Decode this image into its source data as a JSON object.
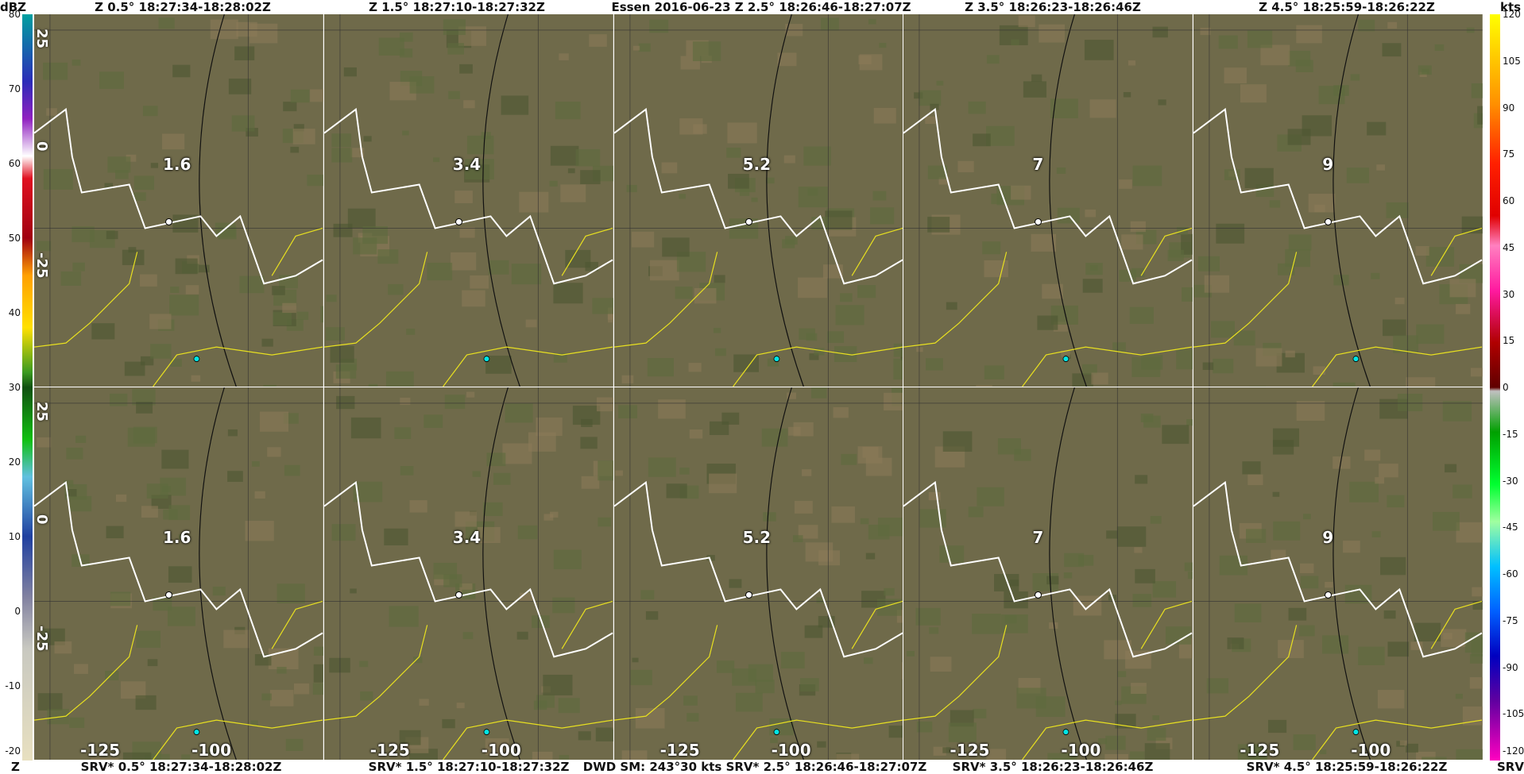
{
  "header": {
    "top_left_unit": "dBZ",
    "top_right_unit": "kts",
    "bottom_left_unit": "Z",
    "bottom_right_unit": "SRV",
    "top_titles": [
      "Z 0.5° 18:27:34-18:28:02Z",
      "Z 1.5° 18:27:10-18:27:32Z",
      "Essen  2016-06-23   Z 2.5° 18:26:46-18:27:07Z",
      "Z 3.5° 18:26:23-18:26:46Z",
      "Z 4.5° 18:25:59-18:26:22Z"
    ],
    "bottom_titles": [
      "SRV* 0.5° 18:27:34-18:28:02Z",
      "SRV* 1.5° 18:27:10-18:27:32Z",
      "DWD    SM: 243°30 kts    SRV* 2.5° 18:26:46-18:27:07Z",
      "SRV* 3.5° 18:26:23-18:26:46Z",
      "SRV* 4.5° 18:25:59-18:26:22Z"
    ]
  },
  "dbz_scale": {
    "ticks": [
      "80",
      "70",
      "60",
      "50",
      "40",
      "30",
      "20",
      "10",
      "0",
      "-10",
      "-20"
    ],
    "overlay_labels_top": [
      "25",
      "0",
      "-25"
    ],
    "overlay_labels_bottom": [
      "25",
      "0",
      "-25"
    ]
  },
  "kts_scale": {
    "ticks": [
      "120",
      "105",
      "90",
      "75",
      "60",
      "45",
      "30",
      "15",
      "0",
      "-15",
      "-30",
      "-45",
      "-60",
      "-75",
      "-90",
      "-105",
      "-120"
    ]
  },
  "panels": {
    "elevation_labels": [
      "1.6",
      "3.4",
      "5.2",
      "7",
      "9"
    ],
    "x_axis_labels": [
      "-125",
      "-100"
    ]
  },
  "colors": {
    "map_base": "#6f6a4a",
    "reflectivity_red": "#c0001a",
    "velocity_red": "#d0001c",
    "velocity_green": "#22a82a",
    "border_white": "#ffffff",
    "border_yellow": "#e8e020",
    "site_marker": "#00e5e5"
  }
}
